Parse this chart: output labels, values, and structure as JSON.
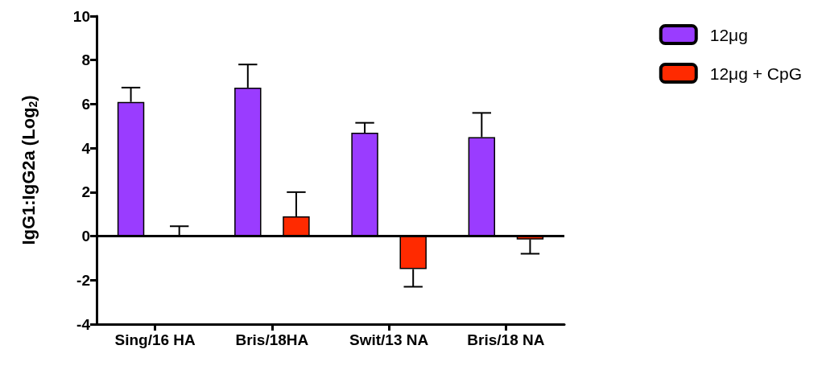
{
  "chart_data": {
    "type": "bar",
    "ylabel": "IgG1:IgG2a (Log$_{2}$)",
    "categories": [
      "Sing/16 HA",
      "Bris/18HA",
      "Swit/13 NA",
      "Bris/18 NA"
    ],
    "series": [
      {
        "name": "12μg",
        "color": "#9a3cff",
        "values": [
          6.1,
          6.75,
          4.7,
          4.5
        ],
        "errors": [
          [
            6.1,
            6.75
          ],
          [
            6.75,
            7.8
          ],
          [
            4.7,
            5.15
          ],
          [
            4.5,
            5.6
          ]
        ]
      },
      {
        "name": "12μg + CpG",
        "color": "#ff2a00",
        "values": [
          0.0,
          0.9,
          -1.5,
          -0.15
        ],
        "errors": [
          [
            0.0,
            0.45
          ],
          [
            0.9,
            2.0
          ],
          [
            -2.3,
            -1.5
          ],
          [
            -0.8,
            -0.15
          ]
        ]
      }
    ],
    "ylim": [
      -4,
      10
    ],
    "yticks": [
      -4,
      -2,
      0,
      2,
      4,
      6,
      8,
      10
    ],
    "grid": false,
    "legend": "top right",
    "ref_lines": [
      {
        "axis": "y",
        "value": 0,
        "color": "#000000"
      }
    ]
  }
}
